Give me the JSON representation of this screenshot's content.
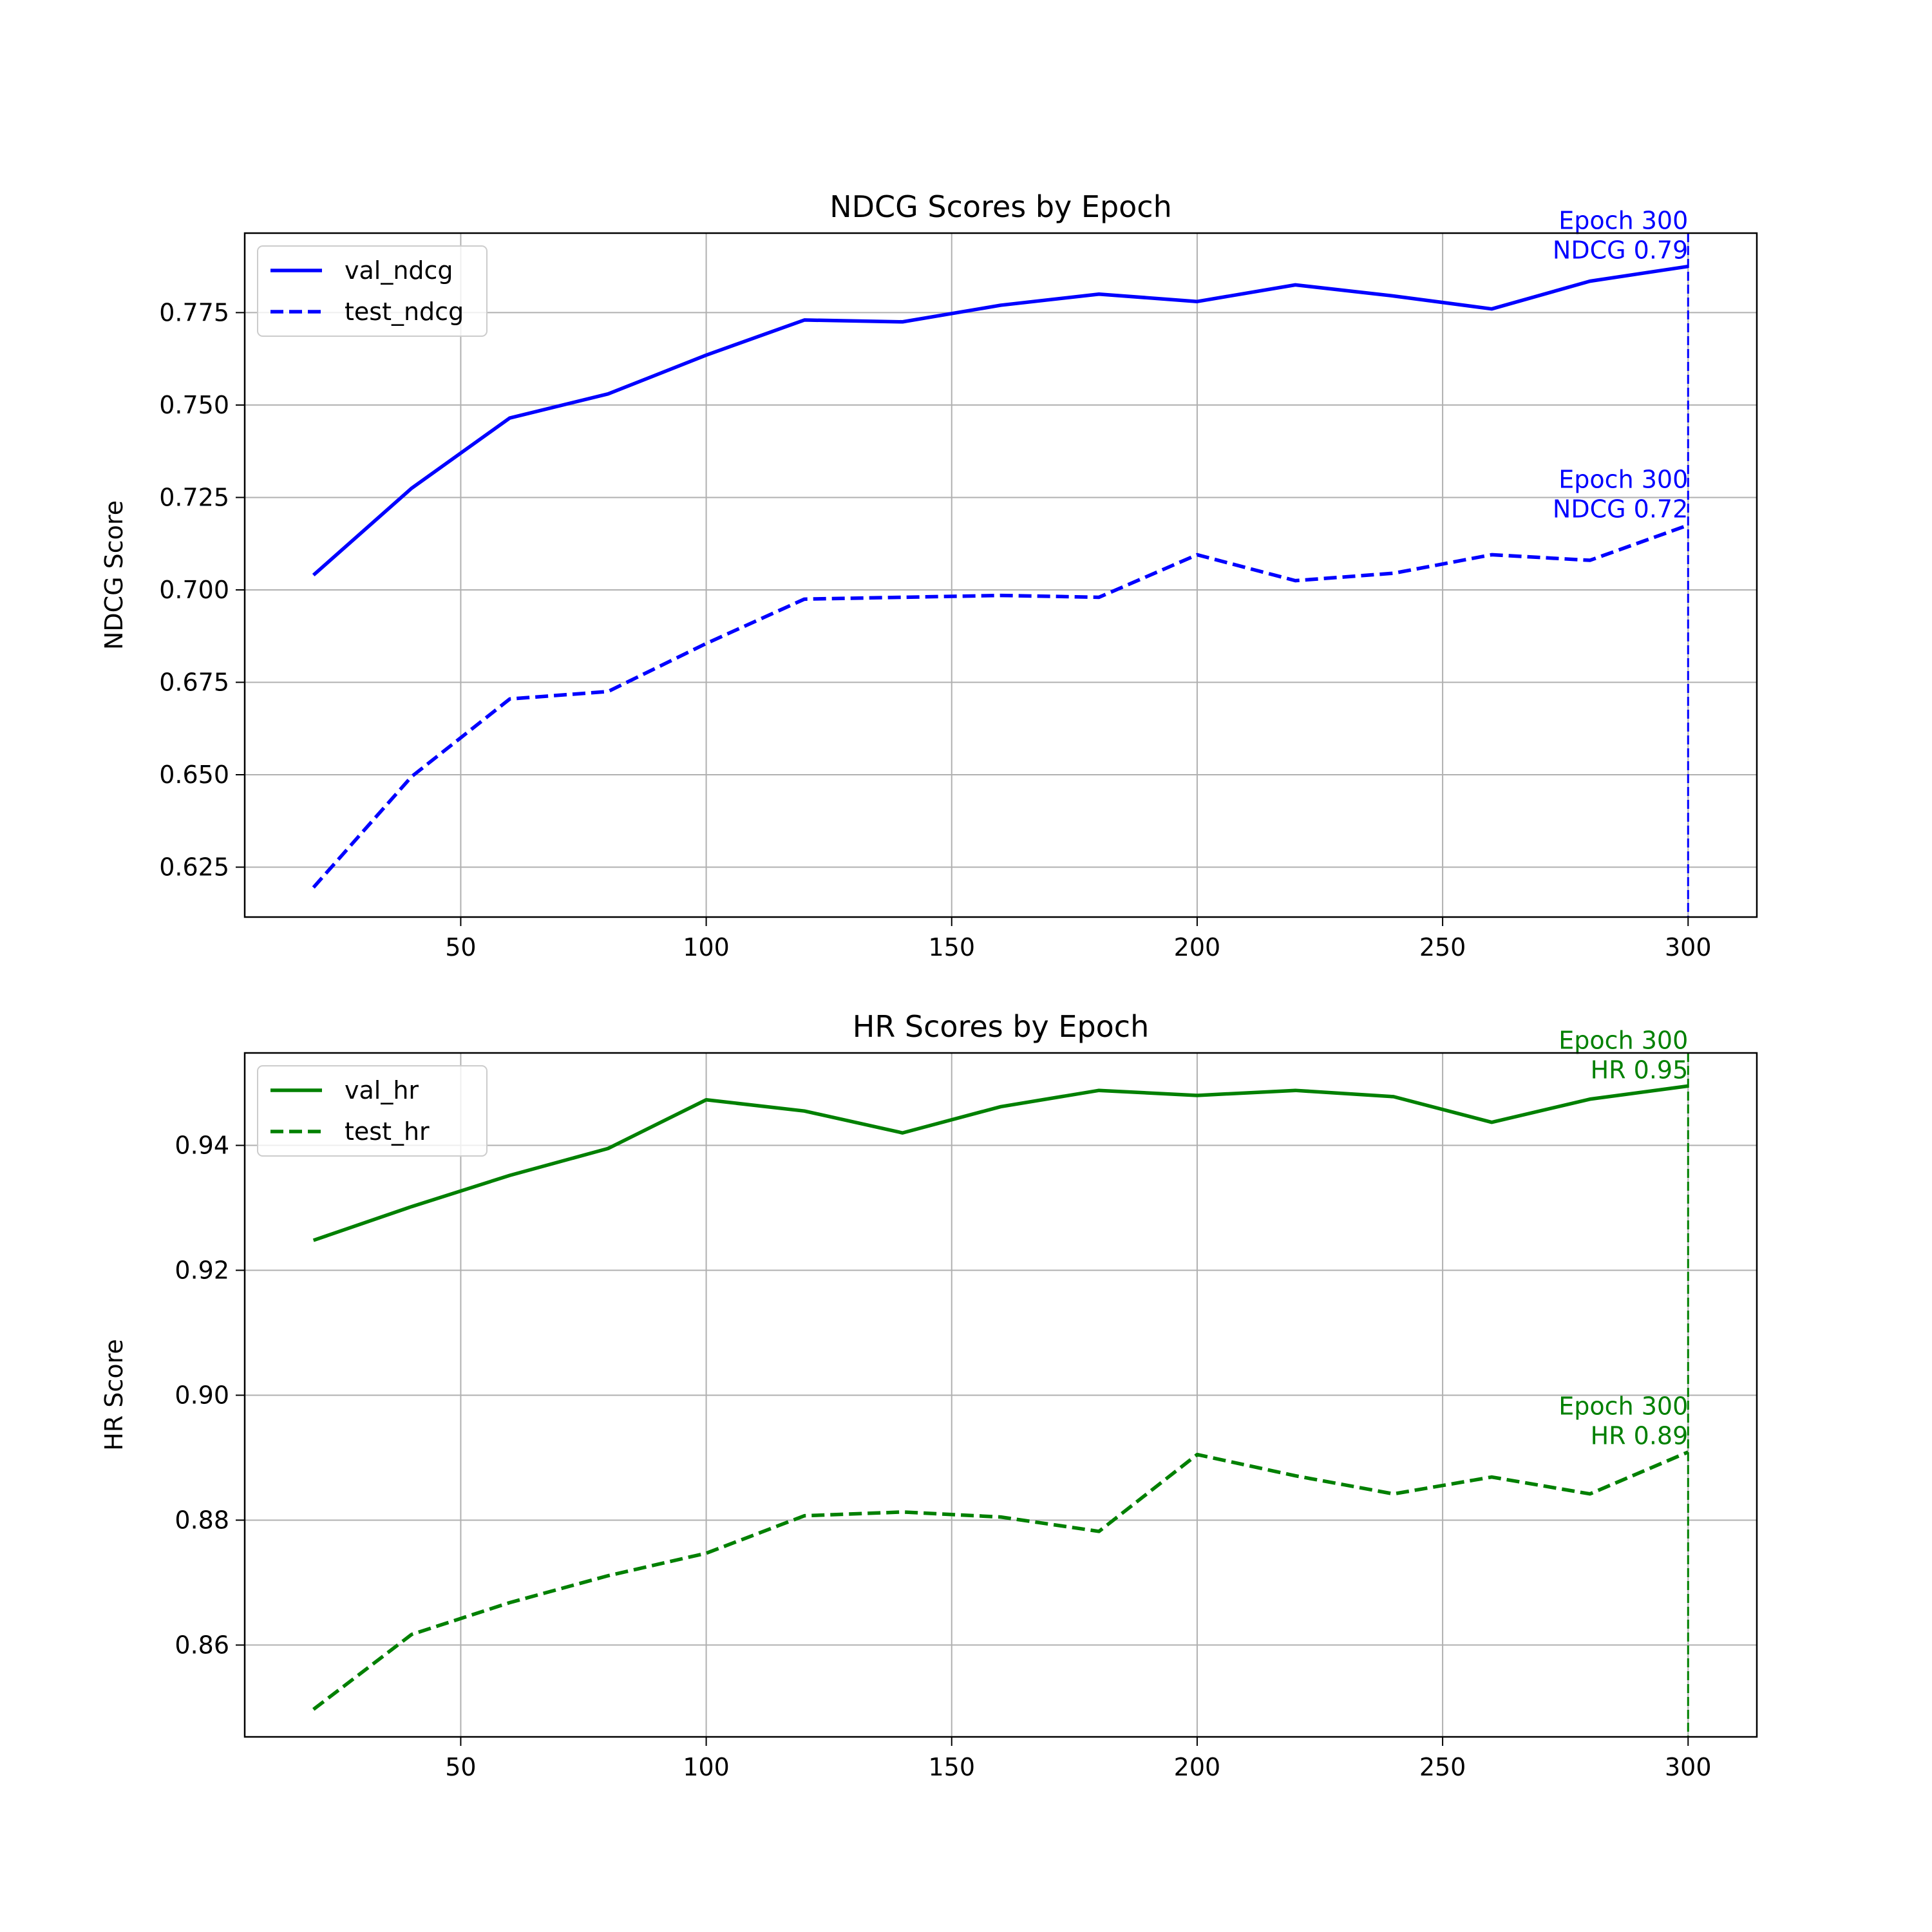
{
  "chart_data": [
    {
      "type": "line",
      "title": "NDCG Scores by Epoch",
      "xlabel": "",
      "ylabel": "NDCG Score",
      "xlim": [
        6,
        314
      ],
      "ylim": [
        0.6115,
        0.7965
      ],
      "xticks": [
        50,
        100,
        150,
        200,
        250,
        300
      ],
      "xtick_labels": [
        "50",
        "100",
        "150",
        "200",
        "250",
        "300"
      ],
      "yticks": [
        0.625,
        0.65,
        0.675,
        0.7,
        0.725,
        0.75,
        0.775
      ],
      "ytick_labels": [
        "0.625",
        "0.650",
        "0.675",
        "0.700",
        "0.725",
        "0.750",
        "0.775"
      ],
      "grid": true,
      "legend_position": "top-left",
      "color": "#0000ff",
      "x": [
        20,
        40,
        60,
        80,
        100,
        120,
        140,
        160,
        180,
        200,
        220,
        240,
        260,
        280,
        300
      ],
      "series": [
        {
          "name": "val_ndcg",
          "style": "solid",
          "values": [
            0.704,
            0.7275,
            0.7465,
            0.753,
            0.7635,
            0.773,
            0.7725,
            0.777,
            0.78,
            0.778,
            0.7825,
            0.7795,
            0.776,
            0.7835,
            0.7875
          ]
        },
        {
          "name": "test_ndcg",
          "style": "dashed",
          "values": [
            0.6195,
            0.6495,
            0.6705,
            0.6725,
            0.6855,
            0.6975,
            0.698,
            0.6985,
            0.698,
            0.7095,
            0.7025,
            0.7045,
            0.7095,
            0.708,
            0.7175
          ]
        }
      ],
      "vline": {
        "x": 300,
        "style": "dashed"
      },
      "annotations": [
        {
          "line1": "Epoch 300",
          "line2": "NDCG 0.79",
          "x": 300,
          "y": 0.7875
        },
        {
          "line1": "Epoch 300",
          "line2": "NDCG 0.72",
          "x": 300,
          "y": 0.7175
        }
      ]
    },
    {
      "type": "line",
      "title": "HR Scores by Epoch",
      "xlabel": "",
      "ylabel": "HR Score",
      "xlim": [
        6,
        314
      ],
      "ylim": [
        0.8453,
        0.9548
      ],
      "xticks": [
        50,
        100,
        150,
        200,
        250,
        300
      ],
      "xtick_labels": [
        "50",
        "100",
        "150",
        "200",
        "250",
        "300"
      ],
      "yticks": [
        0.86,
        0.88,
        0.9,
        0.92,
        0.94
      ],
      "ytick_labels": [
        "0.86",
        "0.88",
        "0.90",
        "0.92",
        "0.94"
      ],
      "grid": true,
      "legend_position": "top-left",
      "color": "#008000",
      "x": [
        20,
        40,
        60,
        80,
        100,
        120,
        140,
        160,
        180,
        200,
        220,
        240,
        260,
        280,
        300
      ],
      "series": [
        {
          "name": "val_hr",
          "style": "solid",
          "values": [
            0.9248,
            0.9302,
            0.9352,
            0.9395,
            0.9473,
            0.9455,
            0.942,
            0.9462,
            0.9488,
            0.948,
            0.9488,
            0.9478,
            0.9437,
            0.9474,
            0.9495
          ]
        },
        {
          "name": "test_hr",
          "style": "dashed",
          "values": [
            0.8497,
            0.8617,
            0.8668,
            0.8711,
            0.8747,
            0.8807,
            0.8813,
            0.8805,
            0.8782,
            0.8905,
            0.8871,
            0.8842,
            0.8869,
            0.8842,
            0.8909
          ]
        }
      ],
      "vline": {
        "x": 300,
        "style": "dashed"
      },
      "annotations": [
        {
          "line1": "Epoch 300",
          "line2": "HR 0.95",
          "x": 300,
          "y": 0.9495
        },
        {
          "line1": "Epoch 300",
          "line2": "HR 0.89",
          "x": 300,
          "y": 0.8909
        }
      ]
    }
  ]
}
